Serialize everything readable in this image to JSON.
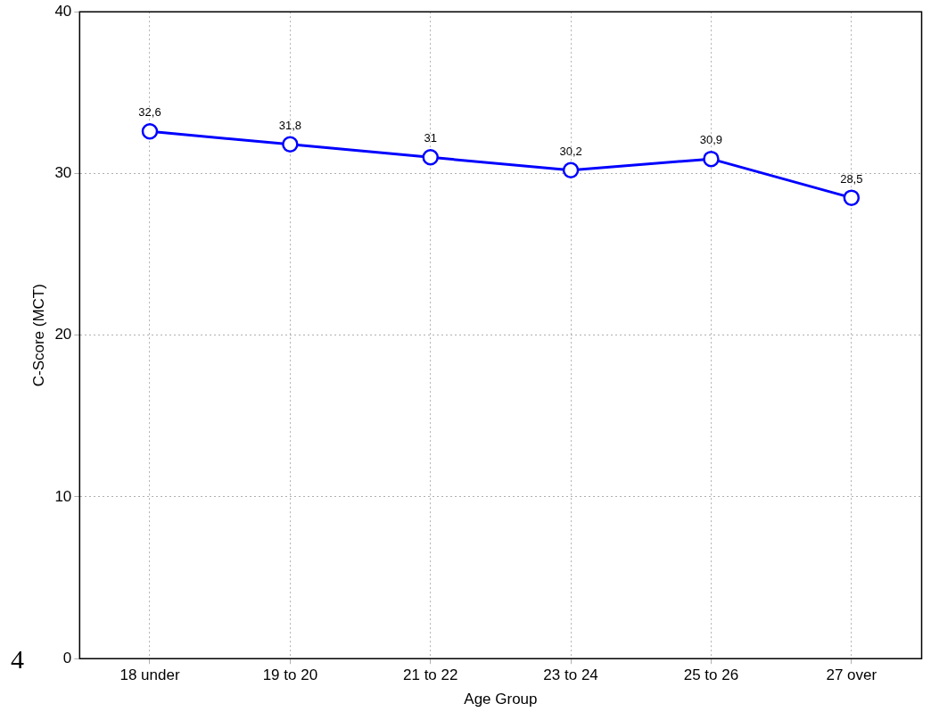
{
  "chart_data": {
    "type": "line",
    "xlabel": "Age Group",
    "ylabel": "C-Score (MCT)",
    "categories": [
      "18 under",
      "19 to 20",
      "21 to 22",
      "23 to 24",
      "25 to 26",
      "27 over"
    ],
    "series": [
      {
        "color": "#0000ff",
        "values": [
          32.6,
          31.8,
          31,
          30.2,
          30.9,
          28.5
        ],
        "value_labels": [
          "32,6",
          "31,8",
          "31",
          "30,2",
          "30,9",
          "28,5"
        ]
      }
    ],
    "ylim": [
      0,
      40
    ],
    "yticks": [
      0,
      10,
      20,
      30,
      40
    ],
    "grid": true,
    "legend": false,
    "marker": "circle",
    "line_style": "solid",
    "annotations": [
      "4"
    ]
  }
}
